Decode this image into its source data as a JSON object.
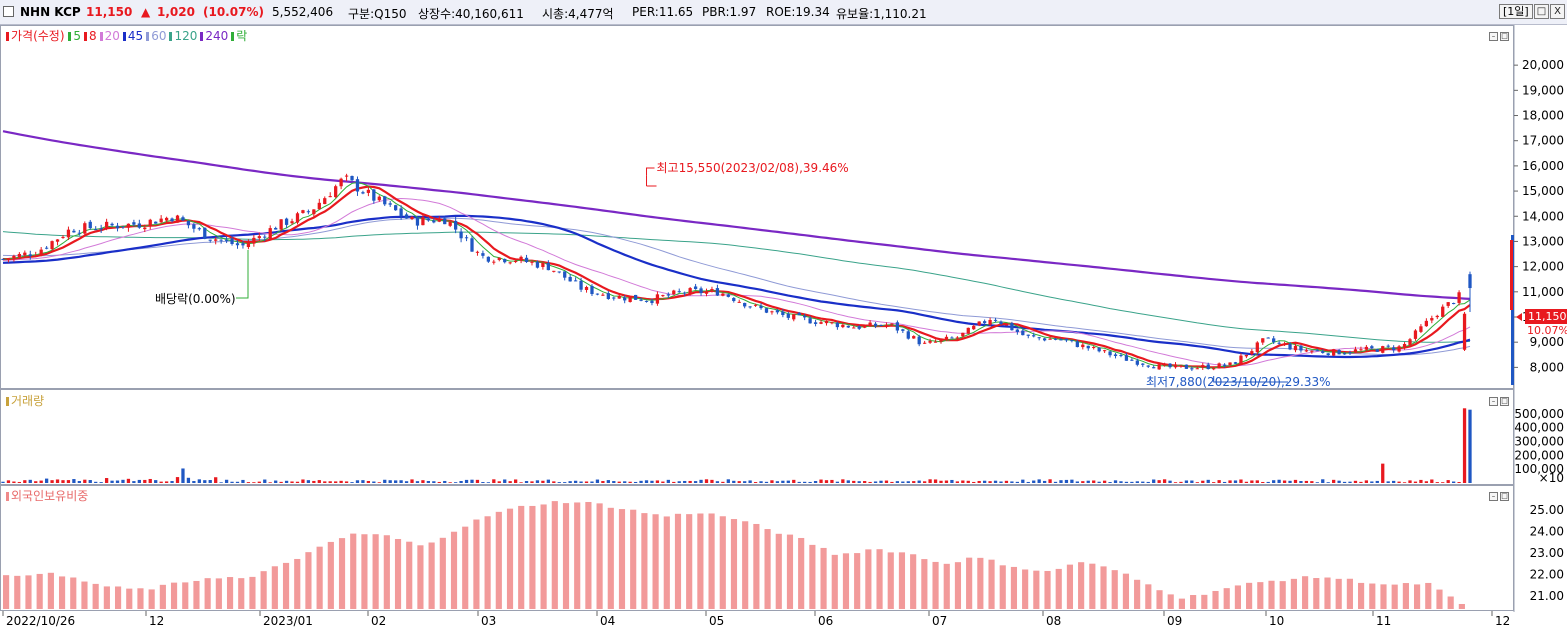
{
  "header": {
    "name": "NHN KCP",
    "price": "11,150",
    "change_arrow": "▲",
    "change": "1,020",
    "change_pct": "(10.07%)",
    "volume": "5,552,406",
    "division": "구분:Q150",
    "listed_shares": "상장수:40,160,611",
    "market_cap": "시총:4,477억",
    "per": "PER:11.65",
    "pbr": "PBR:1.97",
    "roe": "ROE:19.34",
    "float_ratio": "유보율:1,110.21",
    "period_label": "[1일]",
    "btn_box": "□",
    "btn_close": "X"
  },
  "legend_price": {
    "title": "가격(수정)",
    "items": [
      {
        "label": "5",
        "color": "#2fae37"
      },
      {
        "label": "8",
        "color": "#e8191f"
      },
      {
        "label": "20",
        "color": "#d27ad8"
      },
      {
        "label": "45",
        "color": "#1a2fc8"
      },
      {
        "label": "60",
        "color": "#8f9ad6"
      },
      {
        "label": "120",
        "color": "#3aa38a"
      },
      {
        "label": "240",
        "color": "#7a28c4"
      }
    ],
    "last": {
      "label": "락",
      "color": "#2fae37"
    }
  },
  "price_axis": [
    "20,000",
    "19,000",
    "18,000",
    "17,000",
    "16,000",
    "15,000",
    "14,000",
    "13,000",
    "12,000",
    "11,000",
    "10,000",
    "9,000",
    "8,000"
  ],
  "price_badge": "11,150",
  "price_badge_pct": "10.07%",
  "annotations": {
    "high": "최고15,550(2023/02/08),39.46%",
    "low": "최저7,880(2023/10/20),29.33%",
    "dividend": "배당락(0.00%)"
  },
  "volume_pane": {
    "title": "거래량",
    "axis": [
      "500,000",
      "400,000",
      "300,000",
      "200,000",
      "100,000"
    ],
    "unit": "×10"
  },
  "foreign_pane": {
    "title": "외국인보유비중",
    "axis": [
      "25.00",
      "24.00",
      "23.00",
      "22.00",
      "21.00"
    ]
  },
  "x_axis": [
    "2022/10/26",
    "12",
    "2023/01",
    "02",
    "03",
    "04",
    "05",
    "06",
    "07",
    "08",
    "09",
    "10",
    "11",
    "12"
  ],
  "chart_data": {
    "type": "candlestick",
    "price_range": [
      7300,
      20800
    ],
    "volume_range_x10": [
      0,
      600000
    ],
    "foreign_ratio_range": [
      20.4,
      25.6
    ],
    "ma_periods": [
      5,
      8,
      20,
      45,
      60,
      120,
      240
    ],
    "last_close": 11150,
    "high": 15550,
    "low": 7880,
    "price_anchors": [
      12300,
      12600,
      13500,
      13600,
      13700,
      14000,
      13200,
      12800,
      13600,
      14200,
      15500,
      14600,
      13800,
      13900,
      12400,
      12300,
      12000,
      11100,
      10800,
      10700,
      11000,
      11000,
      10400,
      10000,
      9800,
      9600,
      9700,
      8900,
      9200,
      10000,
      9200,
      9100,
      8700,
      8300,
      8000,
      8000,
      8100,
      9100,
      8700,
      8600,
      8700,
      8800,
      10130,
      11150
    ],
    "volume_spike_days_x10": [
      140000,
      540000,
      530000
    ],
    "foreign_ratio_anchors": [
      21.9,
      22.1,
      21.8,
      21.4,
      21.3,
      21.6,
      21.9,
      21.8,
      22.5,
      23.2,
      23.9,
      23.8,
      23.3,
      24.1,
      24.8,
      25.2,
      25.4,
      25.3,
      25.0,
      24.7,
      24.9,
      24.6,
      24.1,
      23.6,
      22.9,
      23.2,
      23.0,
      22.5,
      22.8,
      22.4,
      22.1,
      22.6,
      22.2,
      21.5,
      20.9,
      21.3,
      21.6,
      21.8,
      21.9,
      21.7,
      21.5,
      21.6,
      20.6
    ]
  }
}
